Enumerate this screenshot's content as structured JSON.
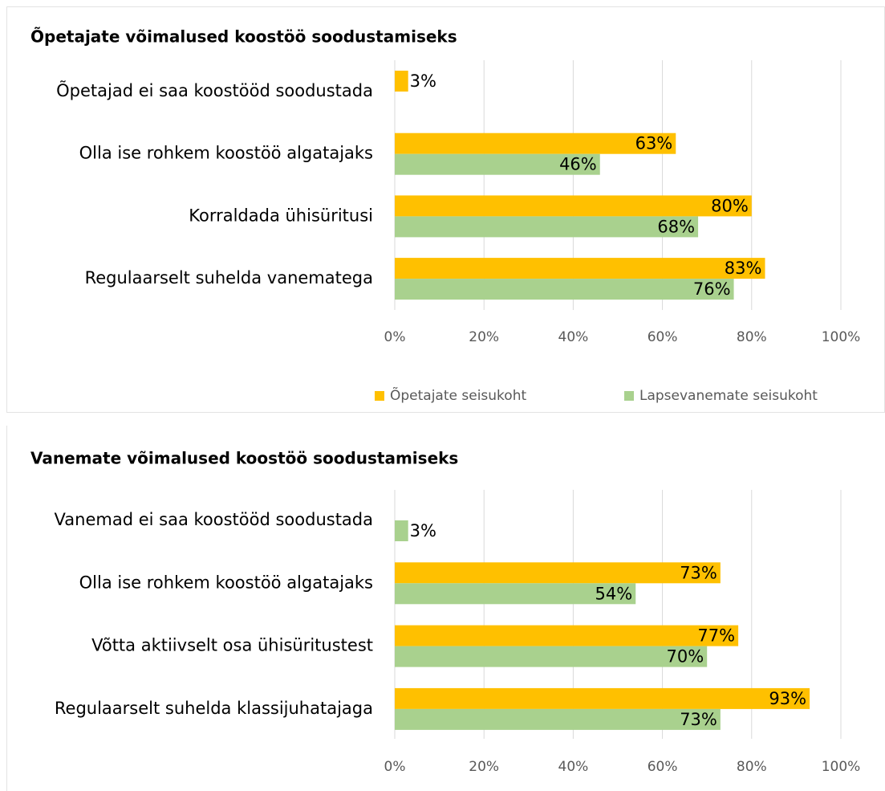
{
  "chart_data": [
    {
      "type": "bar",
      "orientation": "horizontal",
      "title": "Õpetajate võimalused koostöö soodustamiseks",
      "categories": [
        "Õpetajad ei saa koostööd soodustada",
        "Olla ise rohkem koostöö algatajaks",
        "Korraldada ühisüritusi",
        "Regulaarselt suhelda vanematega"
      ],
      "series": [
        {
          "name": "Õpetajate seisukoht",
          "color": "#FFC000",
          "values": [
            3,
            63,
            80,
            83
          ],
          "value_labels": [
            "3%",
            "63%",
            "80%",
            "83%"
          ]
        },
        {
          "name": "Lapsevanemate seisukoht",
          "color": "#A9D18E",
          "values": [
            null,
            46,
            68,
            76
          ],
          "value_labels": [
            null,
            "46%",
            "68%",
            "76%"
          ]
        }
      ],
      "xlim": [
        0,
        100
      ],
      "xticks": [
        {
          "value": 0,
          "label": "0%"
        },
        {
          "value": 20,
          "label": "20%"
        },
        {
          "value": 40,
          "label": "40%"
        },
        {
          "value": 60,
          "label": "60%"
        },
        {
          "value": 80,
          "label": "80%"
        },
        {
          "value": 100,
          "label": "100%"
        }
      ],
      "grid": true,
      "legend": "bottom-right"
    },
    {
      "type": "bar",
      "orientation": "horizontal",
      "title": "Vanemate võimalused koostöö soodustamiseks",
      "categories": [
        "Vanemad ei saa koostööd soodustada",
        "Olla ise rohkem koostöö algatajaks",
        "Võtta aktiivselt osa ühisüritustest",
        "Regulaarselt suhelda klassijuhatajaga"
      ],
      "series": [
        {
          "color": "#FFC000",
          "values": [
            null,
            73,
            77,
            93
          ],
          "value_labels": [
            null,
            "73%",
            "77%",
            "93%"
          ]
        },
        {
          "color": "#A9D18E",
          "values": [
            3,
            54,
            70,
            73
          ],
          "value_labels": [
            "3%",
            "54%",
            "70%",
            "73%"
          ]
        }
      ],
      "xlim": [
        0,
        100
      ],
      "xticks": [
        {
          "value": 0,
          "label": "0%"
        },
        {
          "value": 20,
          "label": "20%"
        },
        {
          "value": 40,
          "label": "40%"
        },
        {
          "value": 60,
          "label": "60%"
        },
        {
          "value": 80,
          "label": "80%"
        },
        {
          "value": 100,
          "label": "100%"
        }
      ],
      "grid": true
    }
  ]
}
